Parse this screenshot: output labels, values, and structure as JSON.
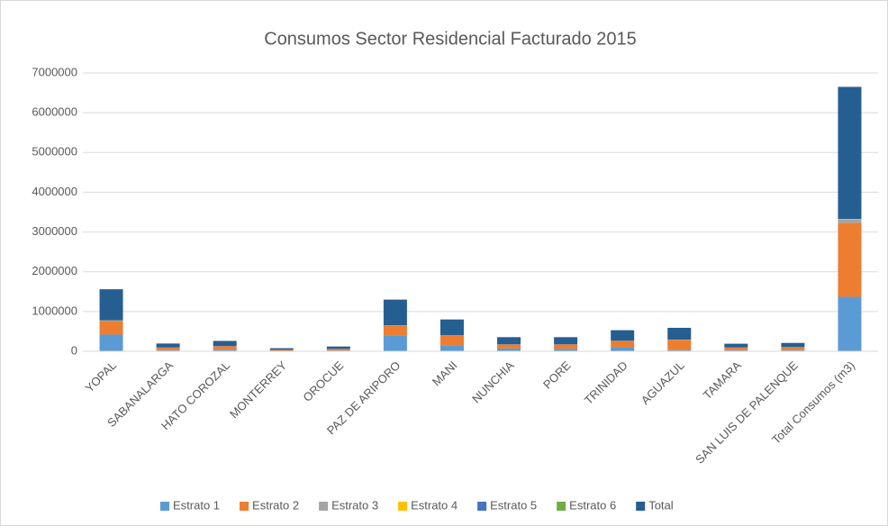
{
  "chart_data": {
    "type": "stacked_bar",
    "title": "Consumos Sector Residencial Facturado 2015",
    "categories": [
      "YOPAL",
      "SABANALARGA",
      "HATO COROZAL",
      "MONTERREY",
      "OROCUE",
      "PAZ DE ARIPORO",
      "MANI",
      "NUNCHIA",
      "PORE",
      "TRINIDAD",
      "AGUAZUL",
      "TAMARA",
      "SAN LUIS DE PALENQUE",
      "Total Consumos (m3)"
    ],
    "series": [
      {
        "name": "Estrato 1",
        "color": "#5b9bd5",
        "values": [
          420000,
          30000,
          40000,
          10000,
          20000,
          400000,
          150000,
          70000,
          60000,
          100000,
          30000,
          30000,
          30000,
          1370000
        ]
      },
      {
        "name": "Estrato 2",
        "color": "#ed7d31",
        "values": [
          340000,
          60000,
          85000,
          25000,
          40000,
          240000,
          240000,
          100000,
          110000,
          160000,
          260000,
          60000,
          70000,
          1860000
        ]
      },
      {
        "name": "Estrato 3",
        "color": "#a5a5a5",
        "values": [
          20000,
          5000,
          5000,
          2000,
          0,
          10000,
          10000,
          5000,
          5000,
          5000,
          5000,
          5000,
          5000,
          90000
        ]
      },
      {
        "name": "Estrato 4",
        "color": "#ffc000",
        "values": [
          0,
          0,
          0,
          0,
          0,
          0,
          0,
          0,
          0,
          0,
          0,
          0,
          0,
          10000
        ]
      },
      {
        "name": "Estrato 5",
        "color": "#4472c4",
        "values": [
          0,
          0,
          0,
          0,
          0,
          0,
          0,
          0,
          0,
          0,
          0,
          0,
          0,
          0
        ]
      },
      {
        "name": "Estrato 6",
        "color": "#70ad47",
        "values": [
          0,
          0,
          0,
          0,
          0,
          0,
          0,
          0,
          0,
          0,
          0,
          0,
          0,
          0
        ]
      },
      {
        "name": "Total",
        "color": "#255e91",
        "values": [
          780000,
          100000,
          130000,
          40000,
          60000,
          650000,
          400000,
          180000,
          180000,
          265000,
          295000,
          95000,
          105000,
          3320000
        ]
      }
    ],
    "ylim": [
      0,
      7000000
    ],
    "yticks": [
      0,
      1000000,
      2000000,
      3000000,
      4000000,
      5000000,
      6000000,
      7000000
    ],
    "grid": true,
    "legend": "bottom"
  }
}
